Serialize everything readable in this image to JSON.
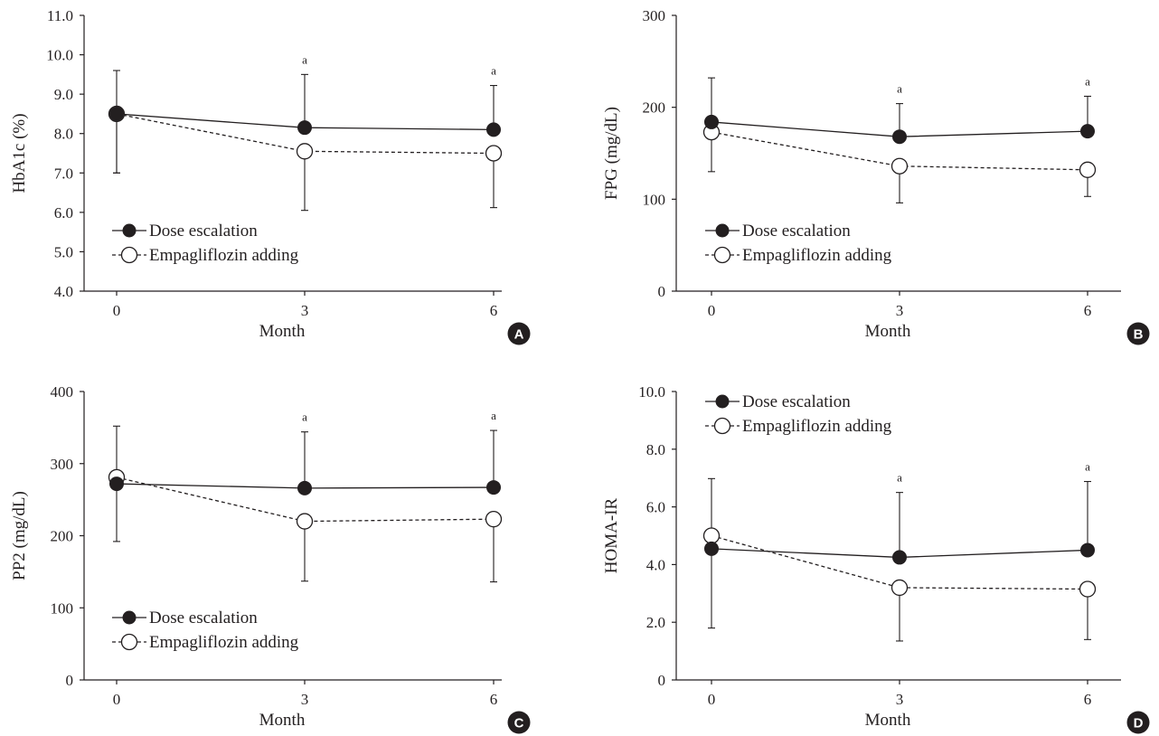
{
  "figure": {
    "legend": {
      "dose_label": "Dose escalation",
      "empa_label": "Empagliflozin adding",
      "dose_marker": "filled-circle",
      "empa_marker": "open-circle"
    },
    "colors": {
      "ink": "#231f20",
      "background": "#ffffff"
    }
  },
  "chart_data": [
    {
      "panel": "A",
      "type": "line",
      "xlabel": "Month",
      "ylabel": "HbA1c (%)",
      "ylim": [
        4.0,
        11.0
      ],
      "yticks": [
        "4.0",
        "5.0",
        "6.0",
        "7.0",
        "8.0",
        "9.0",
        "10.0",
        "11.0"
      ],
      "x": [
        "0",
        "3",
        "6"
      ],
      "legend_position": "bottom-left",
      "series": [
        {
          "name": "Dose escalation",
          "line": "solid",
          "values": [
            8.5,
            8.15,
            8.1
          ],
          "err_up": [
            9.6,
            9.5,
            9.22
          ],
          "err_down": [
            7.0,
            null,
            null
          ]
        },
        {
          "name": "Empagliflozin adding",
          "line": "dashed",
          "values": [
            8.5,
            7.55,
            7.5
          ],
          "err_up": [
            null,
            null,
            null
          ],
          "err_down": [
            7.0,
            6.05,
            6.12
          ]
        }
      ],
      "annotations": [
        {
          "x": "3",
          "text": "a"
        },
        {
          "x": "6",
          "text": "a"
        }
      ]
    },
    {
      "panel": "B",
      "type": "line",
      "xlabel": "Month",
      "ylabel": "FPG (mg/dL)",
      "ylim": [
        0,
        300
      ],
      "yticks": [
        "0",
        "100",
        "200",
        "300"
      ],
      "x": [
        "0",
        "3",
        "6"
      ],
      "legend_position": "bottom-left",
      "series": [
        {
          "name": "Dose escalation",
          "line": "solid",
          "values": [
            184,
            168,
            174
          ],
          "err_up": [
            232,
            204,
            212
          ],
          "err_down": [
            null,
            null,
            null
          ]
        },
        {
          "name": "Empagliflozin adding",
          "line": "dashed",
          "values": [
            173,
            136,
            132
          ],
          "err_up": [
            null,
            null,
            null
          ],
          "err_down": [
            130,
            96,
            103
          ]
        }
      ],
      "annotations": [
        {
          "x": "3",
          "text": "a"
        },
        {
          "x": "6",
          "text": "a"
        }
      ]
    },
    {
      "panel": "C",
      "type": "line",
      "xlabel": "Month",
      "ylabel": "PP2 (mg/dL)",
      "ylim": [
        0,
        400
      ],
      "yticks": [
        "0",
        "100",
        "200",
        "300",
        "400"
      ],
      "x": [
        "0",
        "3",
        "6"
      ],
      "legend_position": "bottom-left",
      "series": [
        {
          "name": "Dose escalation",
          "line": "solid",
          "values": [
            272,
            266,
            267
          ],
          "err_up": [
            352,
            344,
            346
          ],
          "err_down": [
            192,
            null,
            null
          ]
        },
        {
          "name": "Empagliflozin adding",
          "line": "dashed",
          "values": [
            281,
            220,
            223
          ],
          "err_up": [
            null,
            null,
            null
          ],
          "err_down": [
            null,
            137,
            136
          ]
        }
      ],
      "annotations": [
        {
          "x": "3",
          "text": "a"
        },
        {
          "x": "6",
          "text": "a"
        }
      ]
    },
    {
      "panel": "D",
      "type": "line",
      "xlabel": "Month",
      "ylabel": "HOMA-IR",
      "ylim": [
        0,
        10.0
      ],
      "yticks": [
        "0",
        "2.0",
        "4.0",
        "6.0",
        "8.0",
        "10.0"
      ],
      "x": [
        "0",
        "3",
        "6"
      ],
      "legend_position": "top-left",
      "series": [
        {
          "name": "Dose escalation",
          "line": "solid",
          "values": [
            4.55,
            4.25,
            4.5
          ],
          "err_up": [
            6.98,
            6.5,
            6.88
          ],
          "err_down": [
            1.8,
            null,
            null
          ]
        },
        {
          "name": "Empagliflozin adding",
          "line": "dashed",
          "values": [
            5.0,
            3.2,
            3.15
          ],
          "err_up": [
            null,
            null,
            null
          ],
          "err_down": [
            null,
            1.35,
            1.4
          ]
        }
      ],
      "annotations": [
        {
          "x": "3",
          "text": "a"
        },
        {
          "x": "6",
          "text": "a"
        }
      ]
    }
  ]
}
